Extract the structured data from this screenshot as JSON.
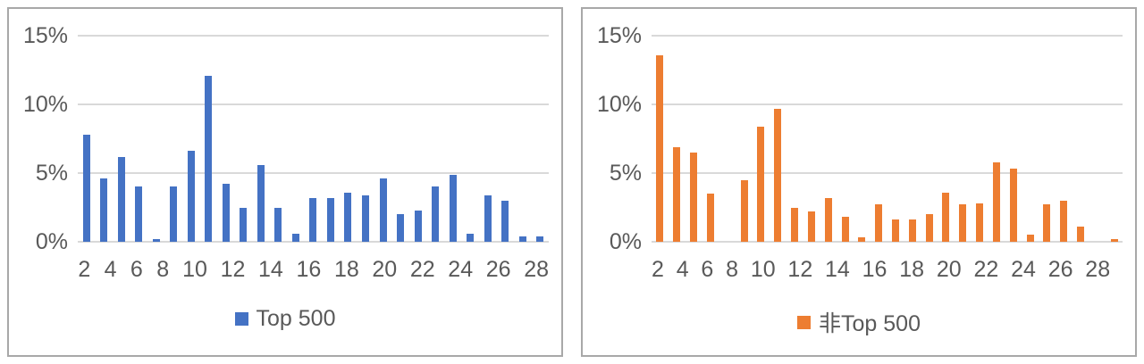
{
  "accent_colors": {
    "blue": "#4472C4",
    "orange": "#ED7D31",
    "grid": "#D9D9D9",
    "axis_text": "#595959"
  },
  "chart_data": [
    {
      "type": "bar",
      "title": "",
      "legend": {
        "label": "Top 500",
        "swatch_color": "#4472C4",
        "position": "bottom"
      },
      "color": "#4472C4",
      "x": [
        2,
        3,
        4,
        5,
        6,
        7,
        8,
        9,
        10,
        11,
        12,
        13,
        14,
        15,
        16,
        17,
        18,
        19,
        20,
        21,
        22,
        23,
        24,
        25,
        26,
        27,
        28
      ],
      "values": [
        7.8,
        4.6,
        6.2,
        4.0,
        0.2,
        4.0,
        6.6,
        12.1,
        4.2,
        2.5,
        5.6,
        2.5,
        0.6,
        3.2,
        3.2,
        3.6,
        3.4,
        4.6,
        2.0,
        2.3,
        4.0,
        4.9,
        0.6,
        3.4,
        3.0,
        0.4,
        0.4
      ],
      "unit": "%",
      "xtick_labels": [
        "2",
        "4",
        "6",
        "8",
        "10",
        "12",
        "14",
        "16",
        "18",
        "20",
        "22",
        "24",
        "26",
        "28"
      ],
      "ytick_labels": [
        "15%",
        "10%",
        "5%",
        "0%"
      ],
      "ylim": [
        0,
        15
      ],
      "ytick_step": 5,
      "grid": true,
      "xlabel": "",
      "ylabel": ""
    },
    {
      "type": "bar",
      "title": "",
      "legend": {
        "label": "非Top 500",
        "swatch_color": "#ED7D31",
        "position": "bottom"
      },
      "color": "#ED7D31",
      "x": [
        2,
        3,
        4,
        5,
        6,
        7,
        8,
        9,
        10,
        11,
        12,
        13,
        14,
        15,
        16,
        17,
        18,
        19,
        20,
        21,
        22,
        23,
        24,
        25,
        26,
        27,
        28,
        29
      ],
      "values": [
        13.6,
        6.9,
        6.5,
        3.5,
        0,
        4.5,
        8.4,
        9.7,
        2.5,
        2.2,
        3.2,
        1.8,
        0.3,
        2.7,
        1.6,
        1.6,
        2.0,
        3.6,
        2.7,
        2.8,
        5.8,
        5.3,
        0.5,
        2.7,
        3.0,
        1.1,
        0,
        0.2
      ],
      "unit": "%",
      "xtick_labels": [
        "2",
        "4",
        "6",
        "8",
        "10",
        "12",
        "14",
        "16",
        "18",
        "20",
        "22",
        "24",
        "26",
        "28"
      ],
      "ytick_labels": [
        "15%",
        "10%",
        "5%",
        "0%"
      ],
      "ylim": [
        0,
        15
      ],
      "ytick_step": 5,
      "grid": true,
      "xlabel": "",
      "ylabel": ""
    }
  ]
}
